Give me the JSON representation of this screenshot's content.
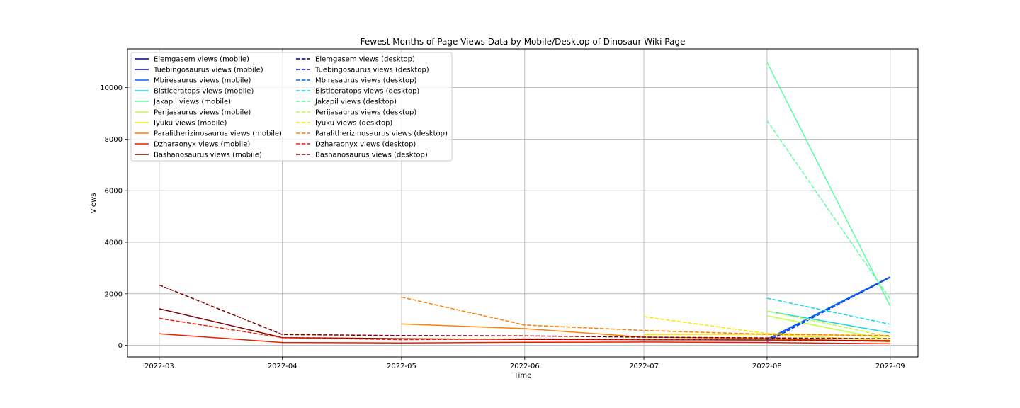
{
  "chart_data": {
    "type": "line",
    "title": "Fewest Months of Page Views Data by Mobile/Desktop of Dinosaur Wiki Page",
    "xlabel": "Time",
    "ylabel": "Views",
    "x_ticks": [
      "2022-03",
      "2022-04",
      "2022-05",
      "2022-06",
      "2022-07",
      "2022-08",
      "2022-09"
    ],
    "xlim": [
      "2022-02-21",
      "2022-09-08"
    ],
    "ylim": [
      -450,
      11500
    ],
    "y_ticks": [
      0,
      2000,
      4000,
      6000,
      8000,
      10000
    ],
    "grid": true,
    "legend_position": "upper left",
    "legend_columns": 2,
    "series": [
      {
        "name": "Elemgasem views (mobile)",
        "color": "#00007f",
        "style": "solid",
        "x": [
          "2022-08-01",
          "2022-09-01"
        ],
        "values": [
          230,
          2640
        ]
      },
      {
        "name": "Tuebingosaurus views (mobile)",
        "color": "#0000f0",
        "style": "solid",
        "x": [
          "2022-08-01",
          "2022-09-01"
        ],
        "values": [
          230,
          2650
        ]
      },
      {
        "name": "Mbiresaurus views (mobile)",
        "color": "#0064ff",
        "style": "solid",
        "x": [
          "2022-08-01",
          "2022-09-01"
        ],
        "values": [
          240,
          2660
        ]
      },
      {
        "name": "Bisticeratops views (mobile)",
        "color": "#14d8e2",
        "style": "solid",
        "x": [
          "2022-08-01",
          "2022-09-01"
        ],
        "values": [
          1330,
          490
        ]
      },
      {
        "name": "Jakapil views (mobile)",
        "color": "#5cffa0",
        "style": "solid",
        "x": [
          "2022-08-01",
          "2022-09-01"
        ],
        "values": [
          10980,
          1530
        ]
      },
      {
        "name": "Perijasaurus views (mobile)",
        "color": "#c0ff36",
        "style": "solid",
        "x": [
          "2022-08-01",
          "2022-09-01"
        ],
        "values": [
          1150,
          200
        ]
      },
      {
        "name": "Iyuku views (mobile)",
        "color": "#ffe500",
        "style": "solid",
        "x": [
          "2022-07-01",
          "2022-08-01",
          "2022-09-01"
        ],
        "values": [
          420,
          430,
          180
        ]
      },
      {
        "name": "Paralitherizinosaurus views (mobile)",
        "color": "#ff7f00",
        "style": "solid",
        "x": [
          "2022-05-01",
          "2022-06-01",
          "2022-07-01",
          "2022-08-01",
          "2022-09-01"
        ],
        "values": [
          830,
          650,
          320,
          270,
          150
        ]
      },
      {
        "name": "Dzharaonyx views (mobile)",
        "color": "#f01c00",
        "style": "solid",
        "x": [
          "2022-03-01",
          "2022-04-01",
          "2022-05-01",
          "2022-06-01",
          "2022-07-01",
          "2022-08-01",
          "2022-09-01"
        ],
        "values": [
          450,
          110,
          90,
          120,
          130,
          110,
          60
        ]
      },
      {
        "name": "Bashanosaurus views (mobile)",
        "color": "#7f0000",
        "style": "solid",
        "x": [
          "2022-03-01",
          "2022-04-01",
          "2022-05-01",
          "2022-06-01",
          "2022-07-01",
          "2022-08-01",
          "2022-09-01"
        ],
        "values": [
          1420,
          300,
          260,
          230,
          220,
          210,
          180
        ]
      },
      {
        "name": "Elemgasem views (desktop)",
        "color": "#00007f",
        "style": "dashed",
        "x": [
          "2022-08-01",
          "2022-09-01"
        ],
        "values": [
          150,
          2640
        ]
      },
      {
        "name": "Tuebingosaurus views (desktop)",
        "color": "#0000f0",
        "style": "dashed",
        "x": [
          "2022-08-01",
          "2022-09-01"
        ],
        "values": [
          160,
          2640
        ]
      },
      {
        "name": "Mbiresaurus views (desktop)",
        "color": "#0064ff",
        "style": "dashed",
        "x": [
          "2022-08-01",
          "2022-09-01"
        ],
        "values": [
          170,
          2650
        ]
      },
      {
        "name": "Bisticeratops views (desktop)",
        "color": "#14d8e2",
        "style": "dashed",
        "x": [
          "2022-08-01",
          "2022-09-01"
        ],
        "values": [
          1830,
          820
        ]
      },
      {
        "name": "Jakapil views (desktop)",
        "color": "#5cffa0",
        "style": "dashed",
        "x": [
          "2022-08-01",
          "2022-09-01"
        ],
        "values": [
          8720,
          1800
        ]
      },
      {
        "name": "Perijasaurus views (desktop)",
        "color": "#c0ff36",
        "style": "dashed",
        "x": [
          "2022-08-01",
          "2022-09-01"
        ],
        "values": [
          1330,
          330
        ]
      },
      {
        "name": "Iyuku views (desktop)",
        "color": "#ffe500",
        "style": "dashed",
        "x": [
          "2022-07-01",
          "2022-08-01",
          "2022-09-01"
        ],
        "values": [
          1110,
          460,
          350
        ]
      },
      {
        "name": "Paralitherizinosaurus views (desktop)",
        "color": "#ff7f00",
        "style": "dashed",
        "x": [
          "2022-05-01",
          "2022-06-01",
          "2022-07-01",
          "2022-08-01",
          "2022-09-01"
        ],
        "values": [
          1870,
          790,
          580,
          430,
          380
        ]
      },
      {
        "name": "Dzharaonyx views (desktop)",
        "color": "#f01c00",
        "style": "dashed",
        "x": [
          "2022-03-01",
          "2022-04-01",
          "2022-05-01",
          "2022-06-01",
          "2022-07-01",
          "2022-08-01",
          "2022-09-01"
        ],
        "values": [
          1050,
          300,
          220,
          250,
          230,
          200,
          160
        ]
      },
      {
        "name": "Bashanosaurus views (desktop)",
        "color": "#7f0000",
        "style": "dashed",
        "x": [
          "2022-03-01",
          "2022-04-01",
          "2022-05-01",
          "2022-06-01",
          "2022-07-01",
          "2022-08-01",
          "2022-09-01"
        ],
        "values": [
          2340,
          420,
          380,
          370,
          320,
          290,
          260
        ]
      }
    ]
  }
}
